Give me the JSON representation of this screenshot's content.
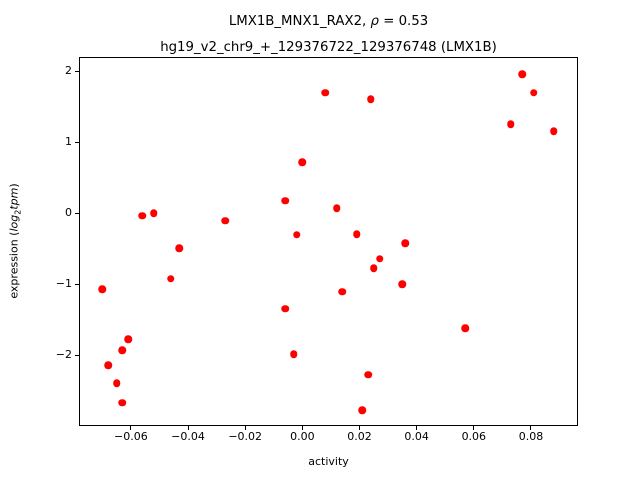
{
  "title": {
    "line1_pre": "LMX1B_MNX1_RAX2, ",
    "line1_rho": "ρ",
    "line1_post": " = 0.53",
    "line2": "hg19_v2_chr9_+_129376722_129376748 (LMX1B)"
  },
  "ylabel": {
    "prefix": "expression (",
    "log": "log",
    "sub": "2",
    "tpm": "tpm",
    "suffix": ")"
  },
  "xlabel": "activity",
  "chart_data": {
    "type": "scatter",
    "title": "LMX1B_MNX1_RAX2, ρ = 0.53",
    "subtitle": "hg19_v2_chr9_+_129376722_129376748 (LMX1B)",
    "xlabel": "activity",
    "ylabel": "expression (log2tpm)",
    "legend": "none",
    "grid": false,
    "marker_color": "#ff0000",
    "axis_color": "#000000",
    "xlim": [
      -0.0778,
      0.0961
    ],
    "ylim": [
      -2.98,
      2.19
    ],
    "xticks": [
      {
        "v": -0.06,
        "label": "−0.06"
      },
      {
        "v": -0.04,
        "label": "−0.04"
      },
      {
        "v": -0.02,
        "label": "−0.02"
      },
      {
        "v": 0.0,
        "label": "0.00"
      },
      {
        "v": 0.02,
        "label": "0.02"
      },
      {
        "v": 0.04,
        "label": "0.04"
      },
      {
        "v": 0.06,
        "label": "0.06"
      },
      {
        "v": 0.08,
        "label": "0.08"
      }
    ],
    "yticks": [
      {
        "v": 2,
        "label": "2"
      },
      {
        "v": 1,
        "label": "1"
      },
      {
        "v": 0,
        "label": "0"
      },
      {
        "v": -1,
        "label": "−1"
      },
      {
        "v": -2,
        "label": "−2"
      }
    ],
    "points": [
      [
        -0.07,
        -1.07
      ],
      [
        -0.068,
        -2.14
      ],
      [
        -0.065,
        -2.39
      ],
      [
        -0.063,
        -2.67
      ],
      [
        -0.063,
        -1.93
      ],
      [
        -0.061,
        -1.77
      ],
      [
        -0.056,
        -0.03
      ],
      [
        -0.052,
        0.0
      ],
      [
        -0.046,
        -0.92
      ],
      [
        -0.043,
        -0.49
      ],
      [
        -0.027,
        -0.1
      ],
      [
        -0.006,
        0.18
      ],
      [
        -0.006,
        -1.34
      ],
      [
        -0.003,
        -1.98
      ],
      [
        -0.002,
        -0.3
      ],
      [
        0.0,
        0.72
      ],
      [
        0.008,
        1.7
      ],
      [
        0.012,
        0.07
      ],
      [
        0.014,
        -1.1
      ],
      [
        0.019,
        -0.29
      ],
      [
        0.021,
        -2.77
      ],
      [
        0.023,
        -2.27
      ],
      [
        0.024,
        1.61
      ],
      [
        0.025,
        -0.77
      ],
      [
        0.027,
        -0.64
      ],
      [
        0.035,
        -1.0
      ],
      [
        0.036,
        -0.42
      ],
      [
        0.057,
        -1.62
      ],
      [
        0.073,
        1.26
      ],
      [
        0.077,
        1.96
      ],
      [
        0.081,
        1.7
      ],
      [
        0.088,
        1.16
      ]
    ]
  }
}
